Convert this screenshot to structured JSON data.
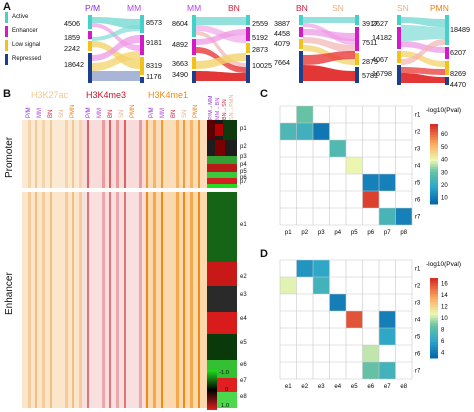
{
  "panels": {
    "A": "A",
    "B": "B",
    "C": "C",
    "D": "D"
  },
  "legend": [
    {
      "label": "Active",
      "color": "#45d0c8"
    },
    {
      "label": "Enhancer",
      "color": "#d21ac8"
    },
    {
      "label": "Low signal",
      "color": "#f2c21c"
    },
    {
      "label": "Repressed",
      "color": "#1c3f8c"
    }
  ],
  "sankeys": [
    {
      "left": "P/M",
      "right": "MM",
      "left_color": "#8a2bd2",
      "right_color": "#b049e0",
      "left_vals": [
        "4506",
        "1859",
        "2242",
        "18642"
      ],
      "right_vals": [
        "8573",
        "9181",
        "8319",
        "1176"
      ]
    },
    {
      "left": "MM",
      "right": "BN",
      "left_color": "#b049e0",
      "right_color": "#d51e3d",
      "left_vals": [
        "8604",
        "4892",
        "3663",
        "3490"
      ],
      "right_vals": [
        "2559",
        "5192",
        "2873",
        "10025"
      ]
    },
    {
      "left": "BN",
      "right": "SN",
      "left_color": "#d51e3d",
      "right_color": "#e8b088",
      "left_vals": [
        "3887",
        "4458",
        "4079",
        "7664"
      ],
      "right_vals": [
        "3917",
        "7511",
        "2879",
        "5781"
      ]
    },
    {
      "left": "SN",
      "right": "PMN",
      "left_color": "#e8b088",
      "right_color": "#ef7e10",
      "left_vals": [
        "2627",
        "14182",
        "4067",
        "16798"
      ],
      "right_vals": [
        "18489",
        "6207",
        "8269",
        "4470"
      ]
    }
  ],
  "heatmap_b": {
    "marks": [
      {
        "label": "H3K27ac",
        "color": "#f0c890"
      },
      {
        "label": "H3K4me3",
        "color": "#c0142a"
      },
      {
        "label": "H3K4me1",
        "color": "#ef8a14"
      }
    ],
    "stages": [
      "P/M",
      "MM",
      "BN",
      "SN",
      "PMN"
    ],
    "row_groups": [
      "Promoter",
      "Enhancer"
    ],
    "transitions": [
      "P/M→MM",
      "MM→BN",
      "BN→SN",
      "SN→PMN"
    ],
    "promoter_clusters": [
      "p1",
      "p2",
      "p3",
      "p4",
      "p5",
      "p6",
      "p7"
    ],
    "enhancer_clusters": [
      "e1",
      "e2",
      "e3",
      "e4",
      "e5",
      "e6",
      "e7",
      "e8"
    ],
    "colorbar": [
      "-1.0",
      "0",
      "1.0"
    ]
  },
  "matrix_c": {
    "title": "-log10(Pval)",
    "rows": [
      "r1",
      "r2",
      "r3",
      "r4",
      "r5",
      "r6",
      "r7"
    ],
    "cols": [
      "p1",
      "p2",
      "p3",
      "p4",
      "p5",
      "p6",
      "p7",
      "p8"
    ],
    "ticks": [
      "60",
      "50",
      "40",
      "30",
      "20",
      "10"
    ],
    "cells": [
      {
        "r": 0,
        "c": 1,
        "v": 30
      },
      {
        "r": 1,
        "c": 0,
        "v": 25
      },
      {
        "r": 1,
        "c": 1,
        "v": 22
      },
      {
        "r": 1,
        "c": 2,
        "v": 8
      },
      {
        "r": 2,
        "c": 3,
        "v": 26
      },
      {
        "r": 3,
        "c": 4,
        "v": 40
      },
      {
        "r": 4,
        "c": 5,
        "v": 10
      },
      {
        "r": 4,
        "c": 6,
        "v": 10
      },
      {
        "r": 5,
        "c": 5,
        "v": 66
      },
      {
        "r": 6,
        "c": 6,
        "v": 24
      },
      {
        "r": 6,
        "c": 7,
        "v": 10
      }
    ]
  },
  "matrix_d": {
    "title": "-log10(Pval)",
    "rows": [
      "r1",
      "r2",
      "r3",
      "r4",
      "r5",
      "r6",
      "r7"
    ],
    "cols": [
      "e1",
      "e2",
      "e3",
      "e4",
      "e5",
      "e6",
      "e7",
      "e8"
    ],
    "ticks": [
      "16",
      "14",
      "12",
      "10",
      "8",
      "6",
      "4"
    ],
    "cells": [
      {
        "r": 0,
        "c": 1,
        "v": 5
      },
      {
        "r": 0,
        "c": 2,
        "v": 6
      },
      {
        "r": 1,
        "c": 0,
        "v": 10.5
      },
      {
        "r": 1,
        "c": 2,
        "v": 7
      },
      {
        "r": 2,
        "c": 3,
        "v": 4
      },
      {
        "r": 3,
        "c": 4,
        "v": 16
      },
      {
        "r": 3,
        "c": 6,
        "v": 4
      },
      {
        "r": 4,
        "c": 6,
        "v": 6
      },
      {
        "r": 5,
        "c": 5,
        "v": 10
      },
      {
        "r": 6,
        "c": 5,
        "v": 8.5
      },
      {
        "r": 6,
        "c": 6,
        "v": 7
      }
    ]
  }
}
